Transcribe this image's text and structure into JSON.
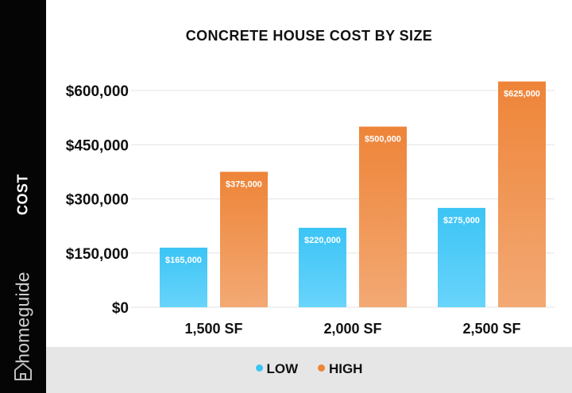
{
  "sidebar": {
    "ylabel": "COST",
    "brand": "homeguide"
  },
  "chart_data": {
    "type": "bar",
    "title": "CONCRETE HOUSE COST BY SIZE",
    "xlabel": "",
    "ylabel": "COST",
    "categories": [
      "1,500 SF",
      "2,000 SF",
      "2,500 SF"
    ],
    "ylim": [
      0,
      600000
    ],
    "yticks": [
      0,
      150000,
      300000,
      450000,
      600000
    ],
    "ytick_labels": [
      "$0",
      "$150,000",
      "$300,000",
      "$450,000",
      "$600,000"
    ],
    "grid": true,
    "legend_position": "bottom",
    "series": [
      {
        "name": "LOW",
        "color": "#3cc4f5",
        "color_light": "#68d4fb",
        "values": [
          165000,
          220000,
          275000
        ],
        "labels": [
          "$165,000",
          "$220,000",
          "$275,000"
        ]
      },
      {
        "name": "HIGH",
        "color": "#ee8438",
        "color_light": "#f3a974",
        "values": [
          375000,
          500000,
          625000
        ],
        "labels": [
          "$375,000",
          "$500,000",
          "$625,000"
        ]
      }
    ]
  }
}
